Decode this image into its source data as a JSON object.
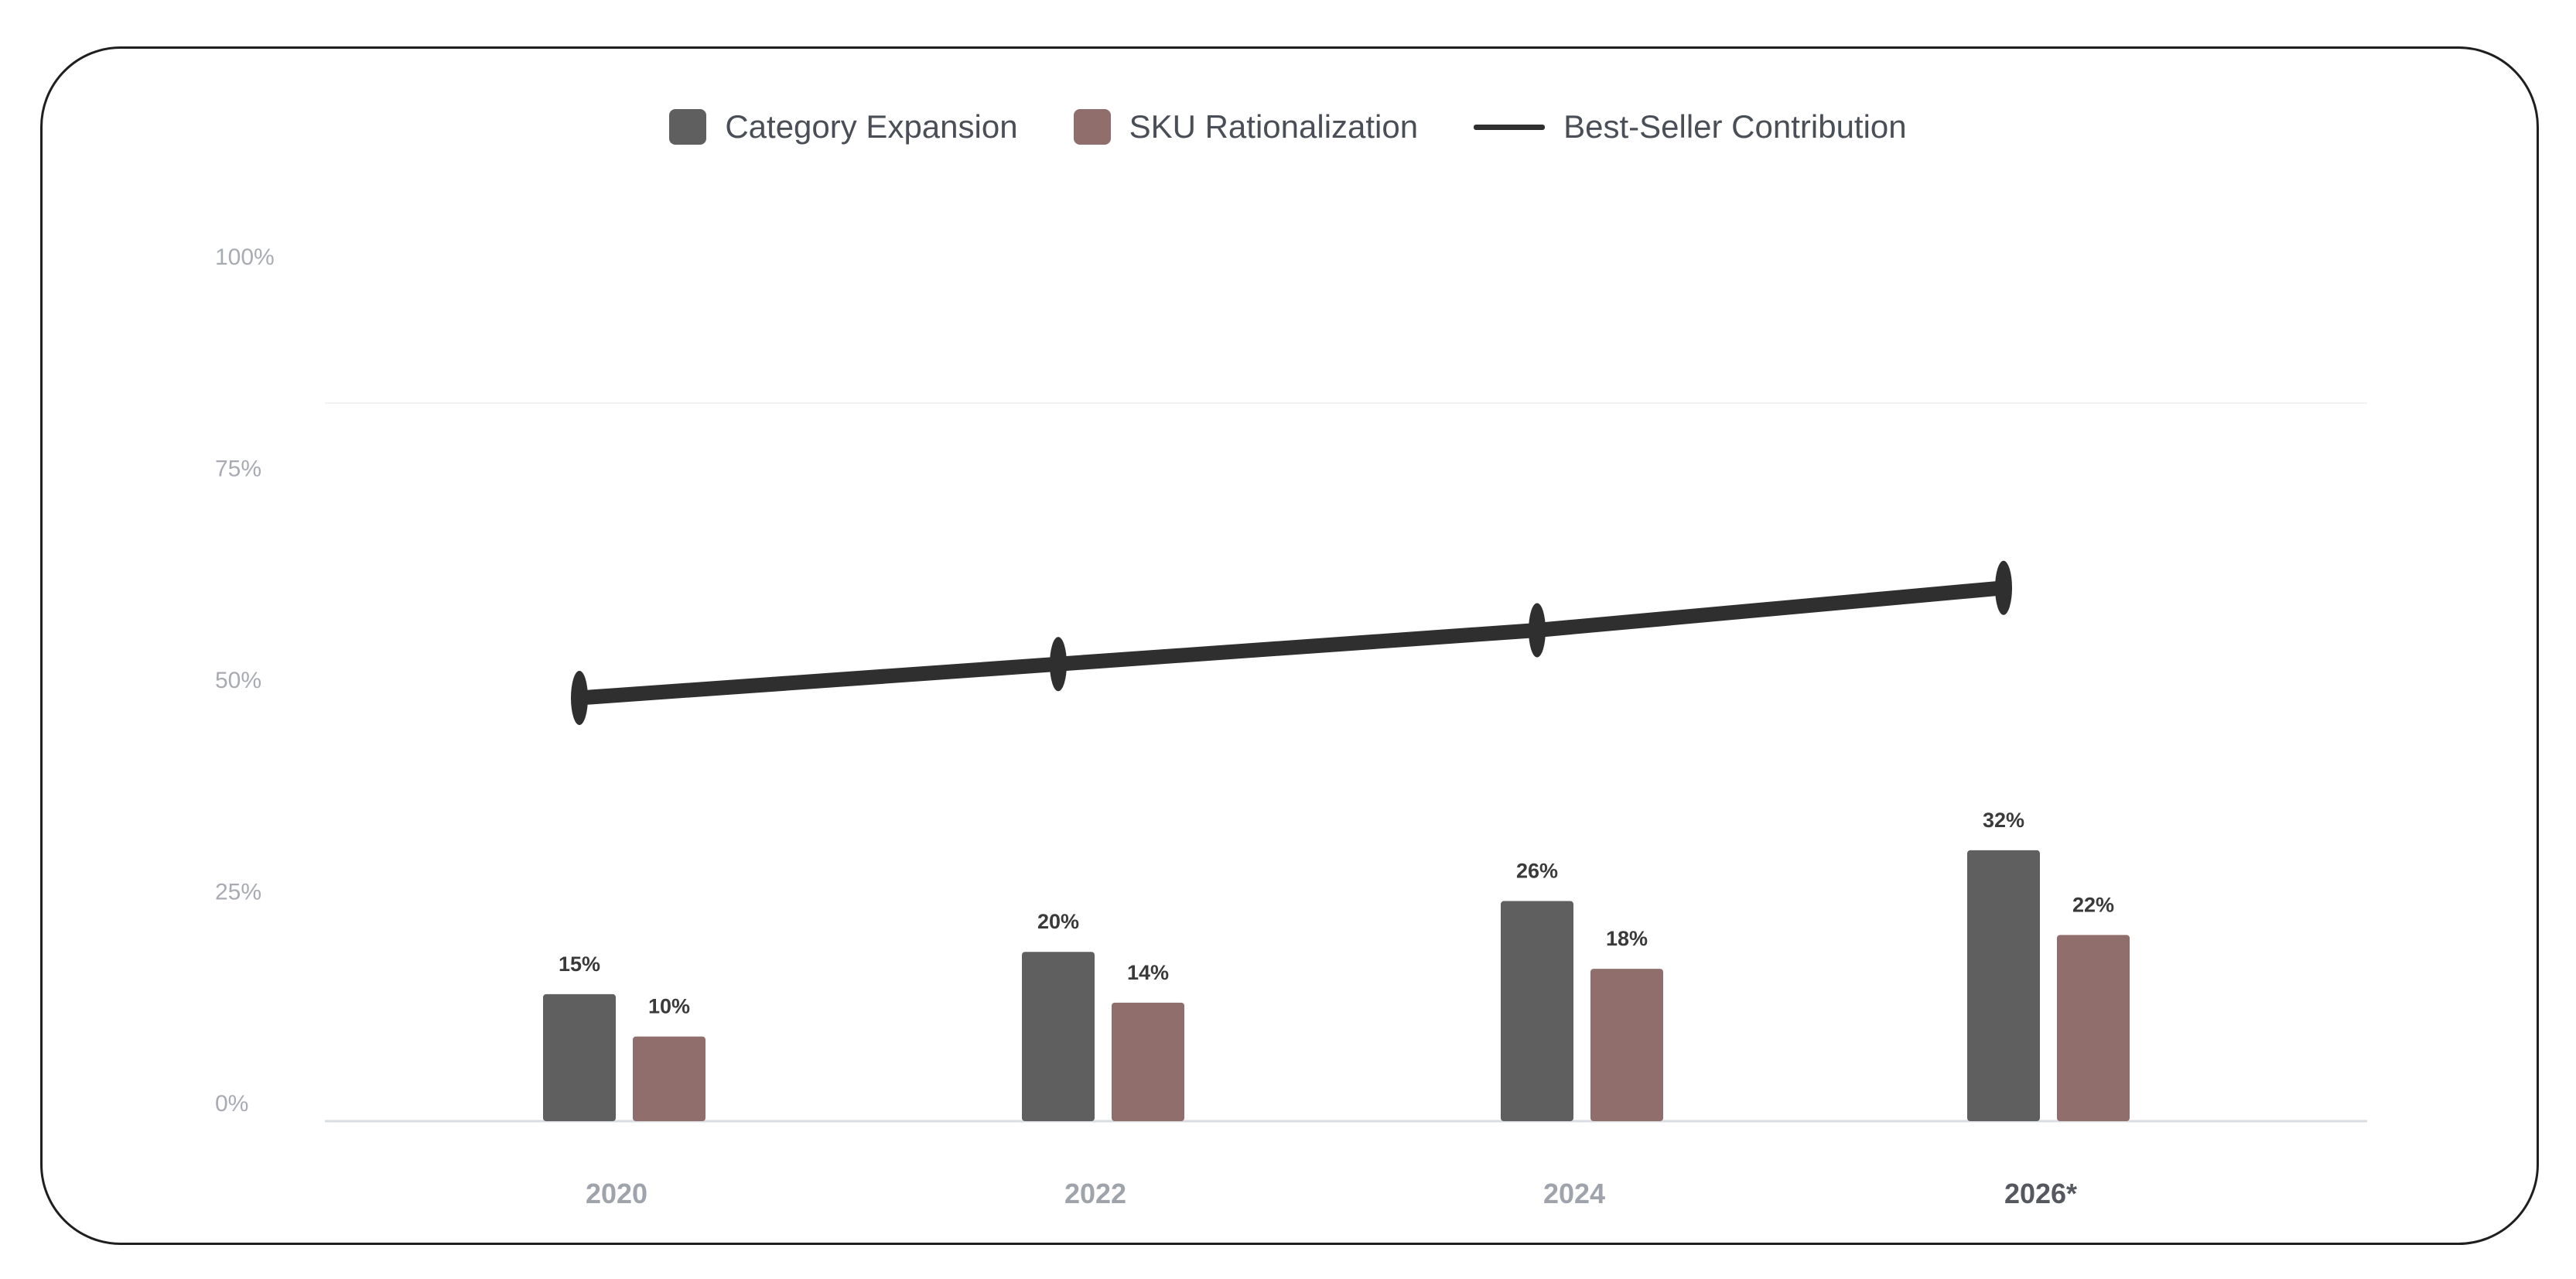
{
  "legend": {
    "items": [
      {
        "label": "Category Expansion",
        "color": "#5f5f5f",
        "kind": "bar"
      },
      {
        "label": "SKU Rationalization",
        "color": "#8f6e6c",
        "kind": "bar"
      },
      {
        "label": "Best-Seller Contribution",
        "color": "#2f2f2f",
        "kind": "line"
      }
    ]
  },
  "chart_data": {
    "type": "bar",
    "categories": [
      "2020",
      "2022",
      "2024",
      "2026*"
    ],
    "series": [
      {
        "name": "Category Expansion",
        "type": "bar",
        "values": [
          15,
          20,
          26,
          32
        ],
        "labels": [
          "15%",
          "20%",
          "26%",
          "32%"
        ],
        "color": "#5f5f5f"
      },
      {
        "name": "SKU Rationalization",
        "type": "bar",
        "values": [
          10,
          14,
          18,
          22
        ],
        "labels": [
          "10%",
          "14%",
          "18%",
          "22%"
        ],
        "color": "#8f6e6c"
      },
      {
        "name": "Best-Seller Contribution",
        "type": "line",
        "values": [
          50,
          54,
          58,
          63
        ],
        "color": "#2f2f2f"
      }
    ],
    "yticks": [
      "0%",
      "25%",
      "50%",
      "75%",
      "100%"
    ],
    "ylim": [
      0,
      100
    ],
    "title": "",
    "xlabel": "",
    "ylabel": "",
    "legend_position": "top-center",
    "grid": false
  }
}
